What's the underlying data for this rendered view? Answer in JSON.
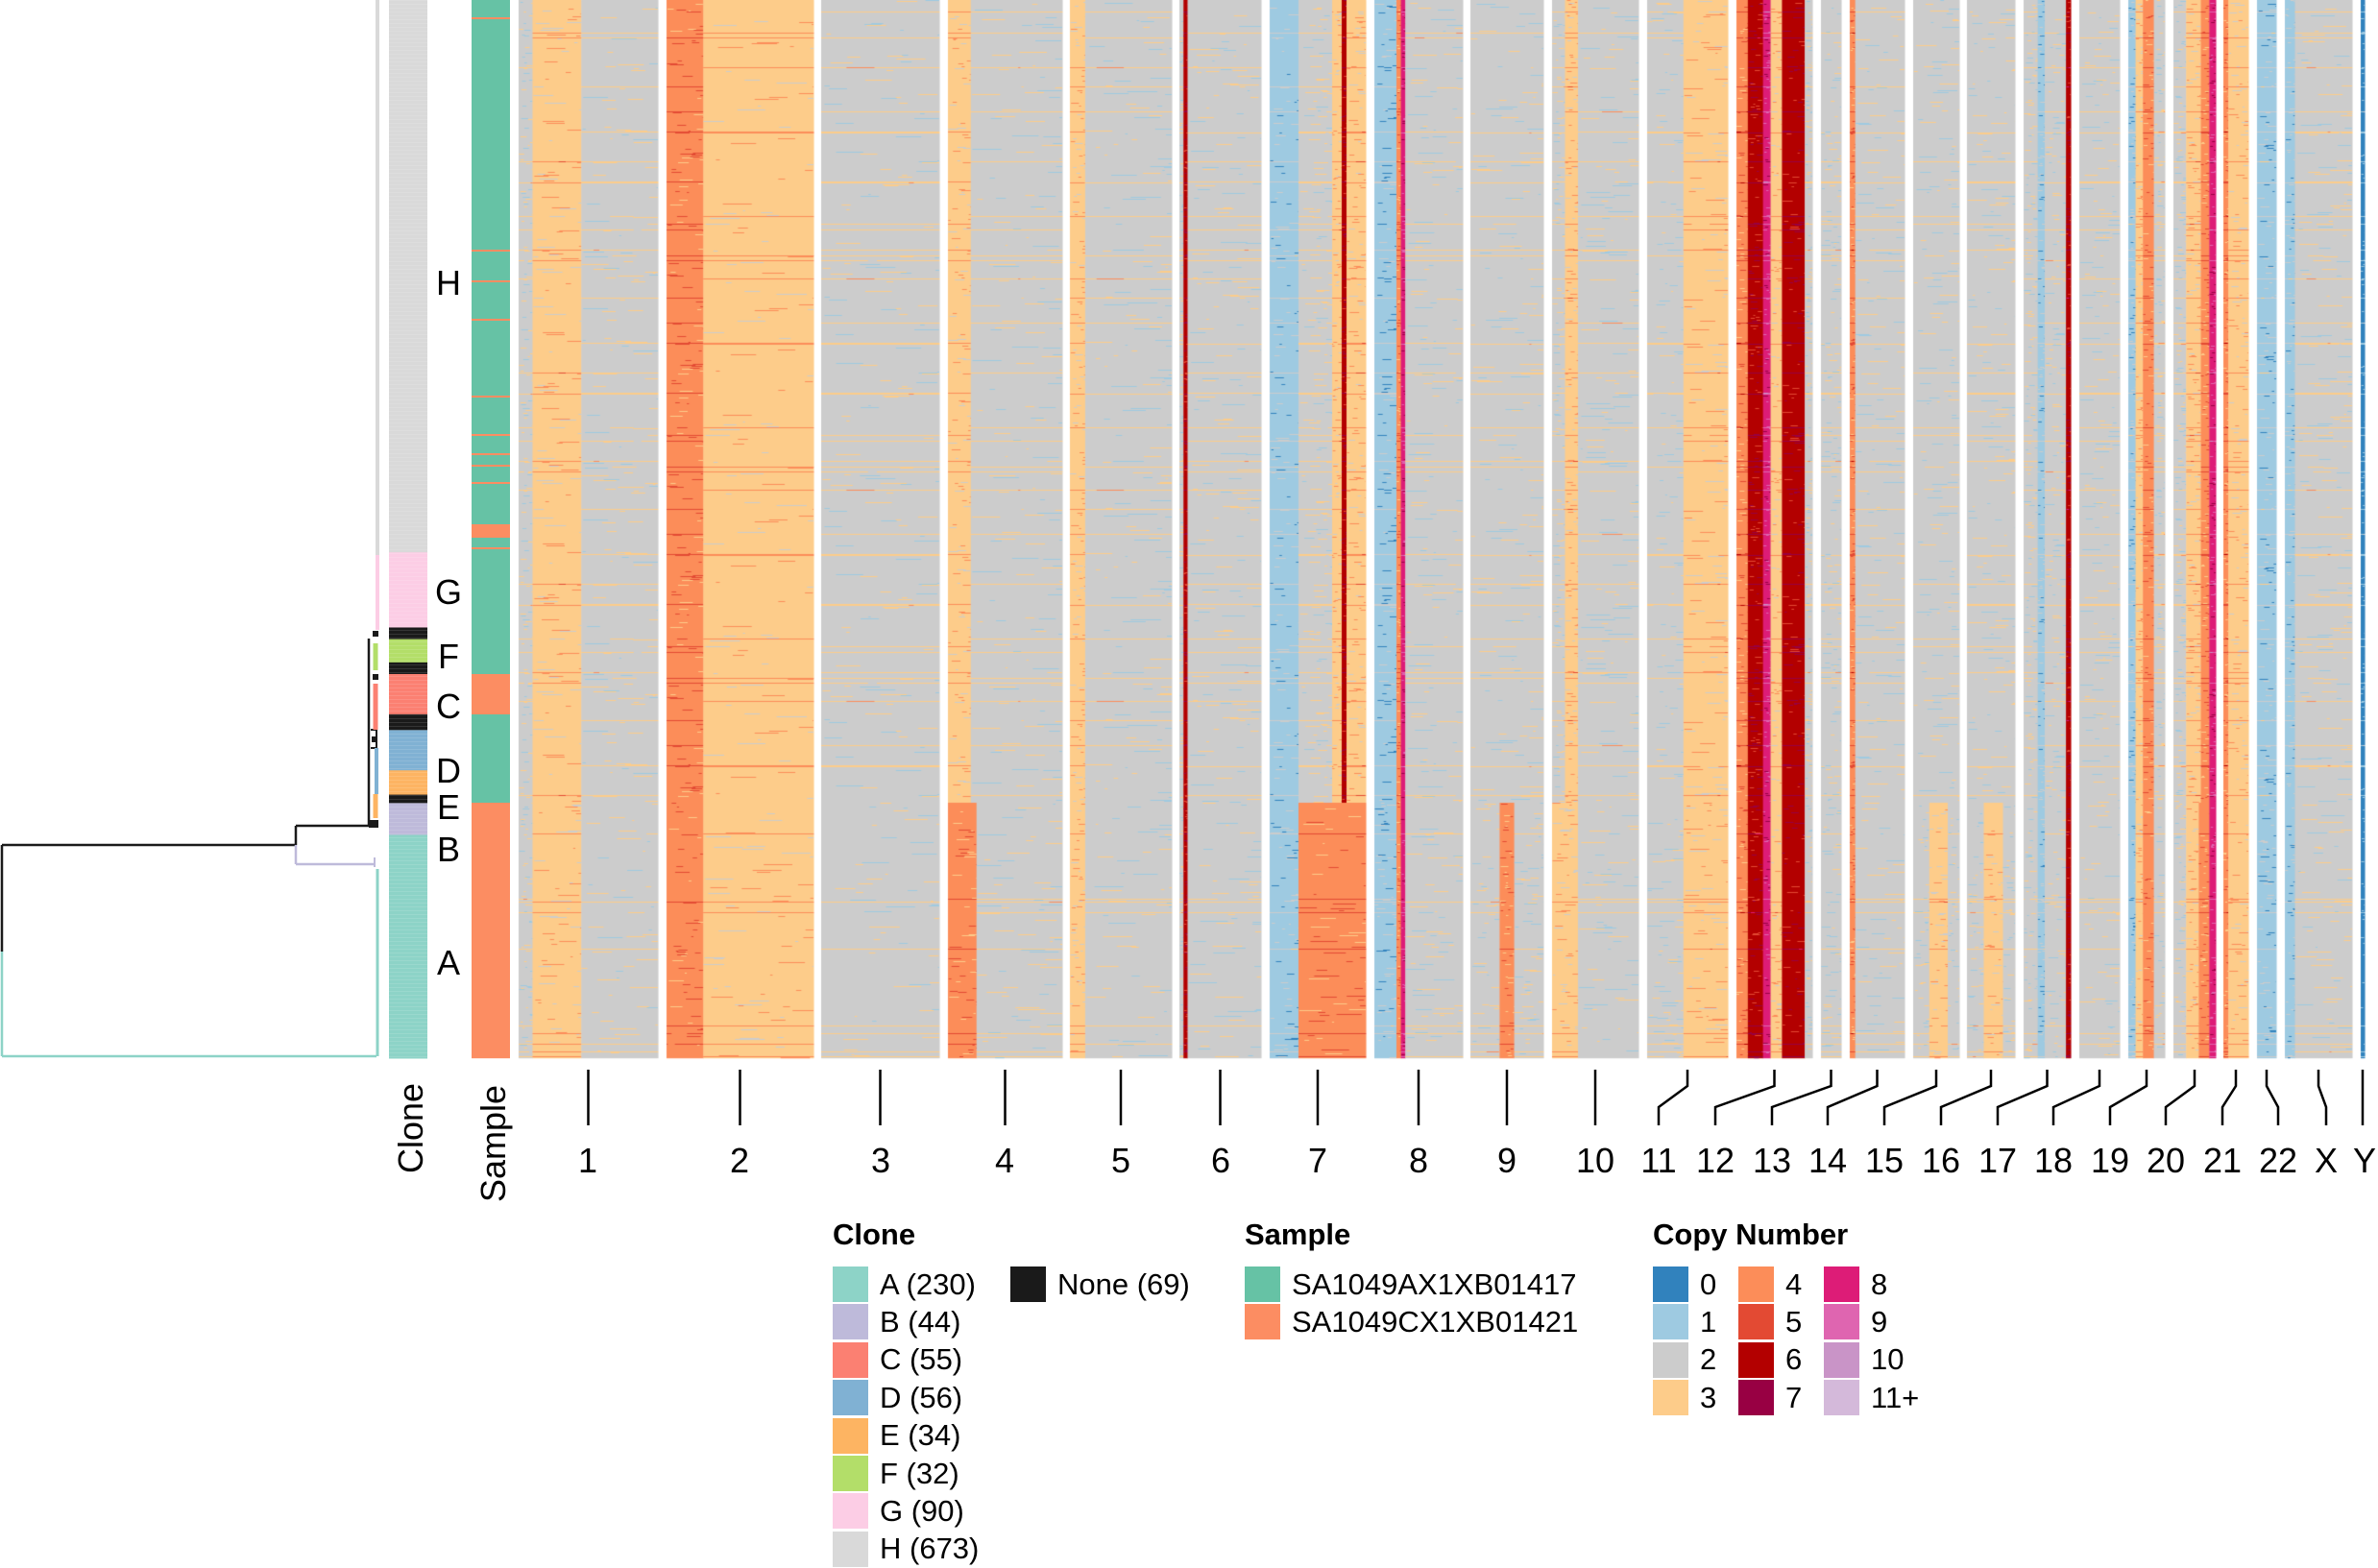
{
  "chart_data": {
    "type": "heatmap",
    "title": "",
    "description": "Single-cell copy number heatmap: cells (rows) ordered by phylogenetic tree, genome bins (columns) grouped by chromosome",
    "row_annotations": [
      {
        "name": "Clone",
        "label": "Clone"
      },
      {
        "name": "Sample",
        "label": "Sample"
      }
    ],
    "chromosomes": [
      "1",
      "2",
      "3",
      "4",
      "5",
      "6",
      "7",
      "8",
      "9",
      "10",
      "11",
      "12",
      "13",
      "14",
      "15",
      "16",
      "17",
      "18",
      "19",
      "20",
      "21",
      "22",
      "X",
      "Y"
    ],
    "clone_order_top_to_bottom": [
      "H",
      "G",
      "None",
      "F",
      "None",
      "C",
      "None",
      "D",
      "E",
      "None",
      "B",
      "A"
    ],
    "clone_block_fractions": [
      0.522,
      0.071,
      0.011,
      0.022,
      0.011,
      0.038,
      0.015,
      0.038,
      0.023,
      0.008,
      0.03,
      0.211
    ],
    "clone_row_labels": [
      "H",
      "G",
      "F",
      "C",
      "D",
      "E",
      "B",
      "A"
    ],
    "legend": {
      "clone": {
        "title": "Clone",
        "items": [
          {
            "label": "A (230)",
            "color": "#8DD3C7"
          },
          {
            "label": "B (44)",
            "color": "#BEBADA"
          },
          {
            "label": "C (55)",
            "color": "#FB8072"
          },
          {
            "label": "D (56)",
            "color": "#80B1D3"
          },
          {
            "label": "E (34)",
            "color": "#FDB462"
          },
          {
            "label": "F (32)",
            "color": "#B3DE69"
          },
          {
            "label": "G (90)",
            "color": "#FCCDE5"
          },
          {
            "label": "H (673)",
            "color": "#D9D9D9"
          }
        ],
        "extra": {
          "label": "None (69)",
          "color": "#1A1A1A"
        }
      },
      "sample": {
        "title": "Sample",
        "items": [
          {
            "label": "SA1049AX1XB01417",
            "color": "#66C2A5"
          },
          {
            "label": "SA1049CX1XB01421",
            "color": "#FC8D62"
          }
        ]
      },
      "copy_number": {
        "title": "Copy Number",
        "items": [
          {
            "label": "0",
            "color": "#3182BD"
          },
          {
            "label": "1",
            "color": "#9ECAE1"
          },
          {
            "label": "2",
            "color": "#CCCCCC"
          },
          {
            "label": "3",
            "color": "#FDCC8A"
          },
          {
            "label": "4",
            "color": "#FC8D59"
          },
          {
            "label": "5",
            "color": "#E34A33"
          },
          {
            "label": "6",
            "color": "#B30000"
          },
          {
            "label": "7",
            "color": "#980043"
          },
          {
            "label": "8",
            "color": "#DD1C77"
          },
          {
            "label": "9",
            "color": "#DF65B0"
          },
          {
            "label": "10",
            "color": "#C994C7"
          },
          {
            "label": "11+",
            "color": "#D4B9DA"
          }
        ]
      }
    },
    "dominant_profiles": {
      "note": "Approximate predominant copy-number state per chromosome segment (fraction of chromosome, state), for upper clones (H..E) and lower clones (B,A)",
      "upper": {
        "1": [
          [
            0.1,
            2
          ],
          [
            0.35,
            3
          ],
          [
            0.55,
            2
          ]
        ],
        "2": [
          [
            0.25,
            4
          ],
          [
            0.75,
            3
          ]
        ],
        "3": [
          [
            1.0,
            2
          ]
        ],
        "4": [
          [
            0.2,
            3
          ],
          [
            0.8,
            2
          ]
        ],
        "5": [
          [
            0.15,
            3
          ],
          [
            0.85,
            2
          ]
        ],
        "6": [
          [
            0.05,
            2
          ],
          [
            0.05,
            6
          ],
          [
            0.9,
            2
          ]
        ],
        "7": [
          [
            0.3,
            1
          ],
          [
            0.35,
            2
          ],
          [
            0.1,
            3
          ],
          [
            0.05,
            6
          ],
          [
            0.2,
            3
          ]
        ],
        "8": [
          [
            0.25,
            1
          ],
          [
            0.05,
            4
          ],
          [
            0.05,
            8
          ],
          [
            0.65,
            2
          ]
        ],
        "9": [
          [
            1.0,
            2
          ]
        ],
        "10": [
          [
            0.15,
            2
          ],
          [
            0.15,
            3
          ],
          [
            0.7,
            2
          ]
        ],
        "11": [
          [
            0.45,
            2
          ],
          [
            0.55,
            3
          ]
        ],
        "12": [
          [
            0.15,
            4
          ],
          [
            0.2,
            6
          ],
          [
            0.1,
            8
          ],
          [
            0.15,
            3
          ],
          [
            0.3,
            6
          ],
          [
            0.1,
            2
          ]
        ],
        "13": [
          [
            1.0,
            2
          ]
        ],
        "14": [
          [
            0.1,
            4
          ],
          [
            0.9,
            2
          ]
        ],
        "15": [
          [
            1.0,
            2
          ]
        ],
        "16": [
          [
            1.0,
            2
          ]
        ],
        "17": [
          [
            0.3,
            2
          ],
          [
            0.15,
            1
          ],
          [
            0.45,
            2
          ],
          [
            0.1,
            6
          ]
        ],
        "18": [
          [
            1.0,
            2
          ]
        ],
        "19": [
          [
            0.2,
            1
          ],
          [
            0.2,
            3
          ],
          [
            0.3,
            4
          ],
          [
            0.3,
            2
          ]
        ],
        "20": [
          [
            0.3,
            2
          ],
          [
            0.35,
            3
          ],
          [
            0.2,
            4
          ],
          [
            0.15,
            8
          ]
        ],
        "21": [
          [
            0.2,
            4
          ],
          [
            0.8,
            3
          ]
        ],
        "22": [
          [
            1.0,
            1
          ]
        ],
        "X": [
          [
            0.15,
            1
          ],
          [
            0.85,
            2
          ]
        ],
        "Y": [
          [
            1.0,
            0
          ]
        ]
      },
      "lower": {
        "1": [
          [
            0.1,
            2
          ],
          [
            0.35,
            3
          ],
          [
            0.55,
            2
          ]
        ],
        "2": [
          [
            0.25,
            4
          ],
          [
            0.75,
            3
          ]
        ],
        "3": [
          [
            1.0,
            2
          ]
        ],
        "4": [
          [
            0.25,
            4
          ],
          [
            0.75,
            2
          ]
        ],
        "5": [
          [
            0.15,
            3
          ],
          [
            0.85,
            2
          ]
        ],
        "6": [
          [
            0.05,
            2
          ],
          [
            0.05,
            6
          ],
          [
            0.9,
            2
          ]
        ],
        "7": [
          [
            0.3,
            1
          ],
          [
            0.7,
            4
          ]
        ],
        "8": [
          [
            0.25,
            1
          ],
          [
            0.05,
            4
          ],
          [
            0.05,
            8
          ],
          [
            0.65,
            2
          ]
        ],
        "9": [
          [
            0.4,
            2
          ],
          [
            0.2,
            4
          ],
          [
            0.4,
            2
          ]
        ],
        "10": [
          [
            0.3,
            3
          ],
          [
            0.7,
            2
          ]
        ],
        "11": [
          [
            0.45,
            2
          ],
          [
            0.55,
            3
          ]
        ],
        "12": [
          [
            0.15,
            4
          ],
          [
            0.2,
            6
          ],
          [
            0.1,
            8
          ],
          [
            0.15,
            3
          ],
          [
            0.3,
            6
          ],
          [
            0.1,
            2
          ]
        ],
        "13": [
          [
            1.0,
            2
          ]
        ],
        "14": [
          [
            0.1,
            4
          ],
          [
            0.9,
            2
          ]
        ],
        "15": [
          [
            0.35,
            2
          ],
          [
            0.4,
            3
          ],
          [
            0.25,
            2
          ]
        ],
        "16": [
          [
            0.35,
            2
          ],
          [
            0.4,
            3
          ],
          [
            0.25,
            2
          ]
        ],
        "17": [
          [
            0.3,
            2
          ],
          [
            0.15,
            1
          ],
          [
            0.45,
            2
          ],
          [
            0.1,
            6
          ]
        ],
        "18": [
          [
            1.0,
            2
          ]
        ],
        "19": [
          [
            0.2,
            1
          ],
          [
            0.2,
            3
          ],
          [
            0.3,
            4
          ],
          [
            0.3,
            2
          ]
        ],
        "20": [
          [
            0.3,
            2
          ],
          [
            0.3,
            3
          ],
          [
            0.25,
            4
          ],
          [
            0.15,
            8
          ]
        ],
        "21": [
          [
            0.2,
            4
          ],
          [
            0.8,
            3
          ]
        ],
        "22": [
          [
            1.0,
            1
          ]
        ],
        "X": [
          [
            0.15,
            1
          ],
          [
            0.85,
            2
          ]
        ],
        "Y": [
          [
            1.0,
            0
          ]
        ]
      }
    }
  },
  "axis": {
    "clone_axis_label": "Clone",
    "sample_axis_label": "Sample"
  }
}
